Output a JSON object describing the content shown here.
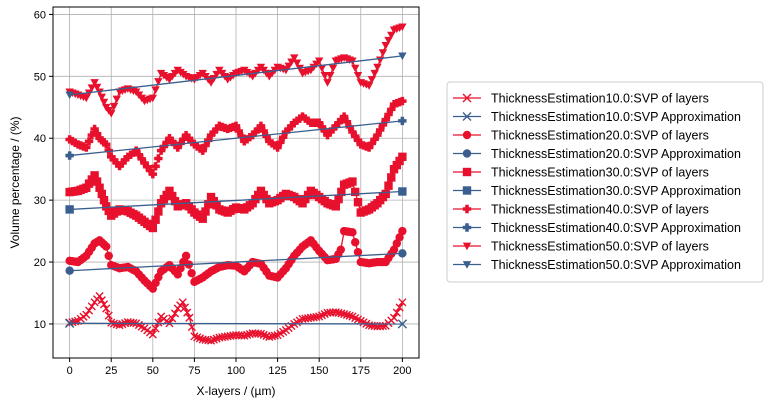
{
  "chart_data": {
    "type": "line",
    "xlabel": "X-layers / (µm)",
    "ylabel": "Volume percentage / (%)",
    "xlim": [
      -10,
      210
    ],
    "ylim": [
      4.5,
      61.2
    ],
    "xticks": [
      0,
      25,
      50,
      75,
      100,
      125,
      150,
      175,
      200
    ],
    "yticks": [
      10,
      20,
      30,
      40,
      50,
      60
    ],
    "grid": true,
    "legend_position": "right",
    "colors": {
      "layers": "#e8112d",
      "approx": "#3a5f8e"
    },
    "series": [
      {
        "name": "ThicknessEstimation10.0:SVP of layers",
        "marker": "x",
        "color": "#e8112d",
        "x": [
          0,
          5,
          10,
          15,
          18,
          22,
          25,
          30,
          35,
          40,
          45,
          50,
          55,
          60,
          65,
          68,
          72,
          75,
          80,
          85,
          90,
          95,
          100,
          105,
          110,
          115,
          120,
          125,
          130,
          135,
          140,
          145,
          150,
          155,
          160,
          165,
          170,
          175,
          180,
          185,
          190,
          195,
          200
        ],
        "y": [
          10.2,
          10.5,
          11.5,
          13.5,
          14.5,
          12.5,
          10.2,
          9.8,
          10.3,
          10.1,
          9.3,
          8.3,
          11.2,
          10.1,
          12.5,
          13.5,
          11.0,
          8.0,
          7.5,
          7.3,
          7.8,
          8.0,
          8.2,
          8.1,
          8.5,
          8.4,
          7.9,
          8.2,
          9.0,
          10.0,
          10.8,
          11.0,
          11.2,
          11.8,
          11.9,
          11.6,
          11.2,
          10.5,
          9.8,
          9.6,
          9.7,
          11.0,
          13.5
        ]
      },
      {
        "name": "ThicknessEstimation10.0:SVP Approximation",
        "marker": "x",
        "color": "#3a5f8e",
        "x": [
          0,
          200
        ],
        "y": [
          10.1,
          10.0
        ]
      },
      {
        "name": "ThicknessEstimation20.0:SVP of layers",
        "marker": "o",
        "color": "#e8112d",
        "x": [
          0,
          5,
          10,
          15,
          18,
          22,
          25,
          30,
          35,
          40,
          45,
          50,
          55,
          60,
          65,
          70,
          75,
          80,
          85,
          90,
          95,
          100,
          105,
          110,
          115,
          120,
          125,
          130,
          135,
          140,
          145,
          150,
          155,
          160,
          163,
          165,
          170,
          175,
          180,
          185,
          190,
          195,
          200
        ],
        "y": [
          20.2,
          20.0,
          21.0,
          23.0,
          23.5,
          22.5,
          19.5,
          19.0,
          19.2,
          18.5,
          17.0,
          15.7,
          18.5,
          19.5,
          18.0,
          21.0,
          16.8,
          17.5,
          18.5,
          19.2,
          19.5,
          19.4,
          18.5,
          20.0,
          19.7,
          17.8,
          17.5,
          19.0,
          21.0,
          22.5,
          23.5,
          21.8,
          20.3,
          20.5,
          22.0,
          25.0,
          24.8,
          20.0,
          19.8,
          20.0,
          20.0,
          22.0,
          25.0
        ]
      },
      {
        "name": "ThicknessEstimation20.0:SVP Approximation",
        "marker": "o",
        "color": "#3a5f8e",
        "x": [
          0,
          200
        ],
        "y": [
          18.6,
          21.4
        ]
      },
      {
        "name": "ThicknessEstimation30.0:SVP of layers",
        "marker": "s",
        "color": "#e8112d",
        "x": [
          0,
          5,
          10,
          15,
          18,
          22,
          25,
          30,
          35,
          40,
          45,
          50,
          55,
          60,
          65,
          70,
          75,
          80,
          85,
          90,
          95,
          100,
          105,
          110,
          115,
          120,
          125,
          130,
          135,
          140,
          145,
          150,
          155,
          160,
          165,
          170,
          175,
          180,
          185,
          190,
          195,
          200
        ],
        "y": [
          31.3,
          31.5,
          32.0,
          34.0,
          32.0,
          29.0,
          27.5,
          28.5,
          28.2,
          27.5,
          26.5,
          25.5,
          29.5,
          31.5,
          29.0,
          29.5,
          28.0,
          27.0,
          30.5,
          28.5,
          28.0,
          28.8,
          28.5,
          29.5,
          31.5,
          29.5,
          30.0,
          31.0,
          30.5,
          29.5,
          31.5,
          30.5,
          29.5,
          29.0,
          32.5,
          33.0,
          28.0,
          28.5,
          29.5,
          31.0,
          35.0,
          37.0
        ]
      },
      {
        "name": "ThicknessEstimation30.0:SVP Approximation",
        "marker": "s",
        "color": "#3a5f8e",
        "x": [
          0,
          200
        ],
        "y": [
          28.5,
          31.4
        ]
      },
      {
        "name": "ThicknessEstimation40.0:SVP of layers",
        "marker": "P",
        "color": "#e8112d",
        "x": [
          0,
          5,
          10,
          15,
          18,
          22,
          25,
          30,
          35,
          40,
          45,
          50,
          55,
          60,
          65,
          70,
          75,
          80,
          85,
          90,
          95,
          100,
          105,
          110,
          115,
          120,
          125,
          130,
          135,
          140,
          145,
          150,
          155,
          160,
          165,
          170,
          175,
          180,
          185,
          190,
          195,
          200
        ],
        "y": [
          39.8,
          39.0,
          38.5,
          41.5,
          40.0,
          39.0,
          37.0,
          35.5,
          37.0,
          38.0,
          36.0,
          34.2,
          38.0,
          40.0,
          38.5,
          40.5,
          39.0,
          38.0,
          40.5,
          42.0,
          41.5,
          42.0,
          39.5,
          40.5,
          42.0,
          39.5,
          38.5,
          41.0,
          42.5,
          43.5,
          42.5,
          42.5,
          40.5,
          42.0,
          43.5,
          41.0,
          39.0,
          38.5,
          40.5,
          43.0,
          45.5,
          46.0
        ]
      },
      {
        "name": "ThicknessEstimation40.0:SVP Approximation",
        "marker": "P",
        "color": "#3a5f8e",
        "x": [
          0,
          200
        ],
        "y": [
          37.2,
          42.8
        ]
      },
      {
        "name": "ThicknessEstimation50.0:SVP of layers",
        "marker": "v",
        "color": "#e8112d",
        "x": [
          0,
          5,
          10,
          15,
          18,
          22,
          25,
          30,
          35,
          40,
          45,
          50,
          55,
          60,
          65,
          70,
          75,
          80,
          85,
          90,
          95,
          100,
          105,
          110,
          115,
          120,
          125,
          130,
          135,
          140,
          145,
          150,
          155,
          160,
          165,
          170,
          175,
          180,
          185,
          190,
          195,
          200
        ],
        "y": [
          47.5,
          47.0,
          46.5,
          49.0,
          47.5,
          45.0,
          44.0,
          47.5,
          48.0,
          47.5,
          46.0,
          46.5,
          50.5,
          49.5,
          51.0,
          50.0,
          49.5,
          50.5,
          49.0,
          51.0,
          49.5,
          50.5,
          51.0,
          50.0,
          51.5,
          50.0,
          51.5,
          51.0,
          53.0,
          50.5,
          51.0,
          52.5,
          49.0,
          52.5,
          53.0,
          52.5,
          49.0,
          48.5,
          51.5,
          55.0,
          57.5,
          58.0
        ]
      },
      {
        "name": "ThicknessEstimation50.0:SVP Approximation",
        "marker": "v",
        "color": "#3a5f8e",
        "x": [
          0,
          200
        ],
        "y": [
          47.0,
          53.3
        ]
      }
    ]
  }
}
